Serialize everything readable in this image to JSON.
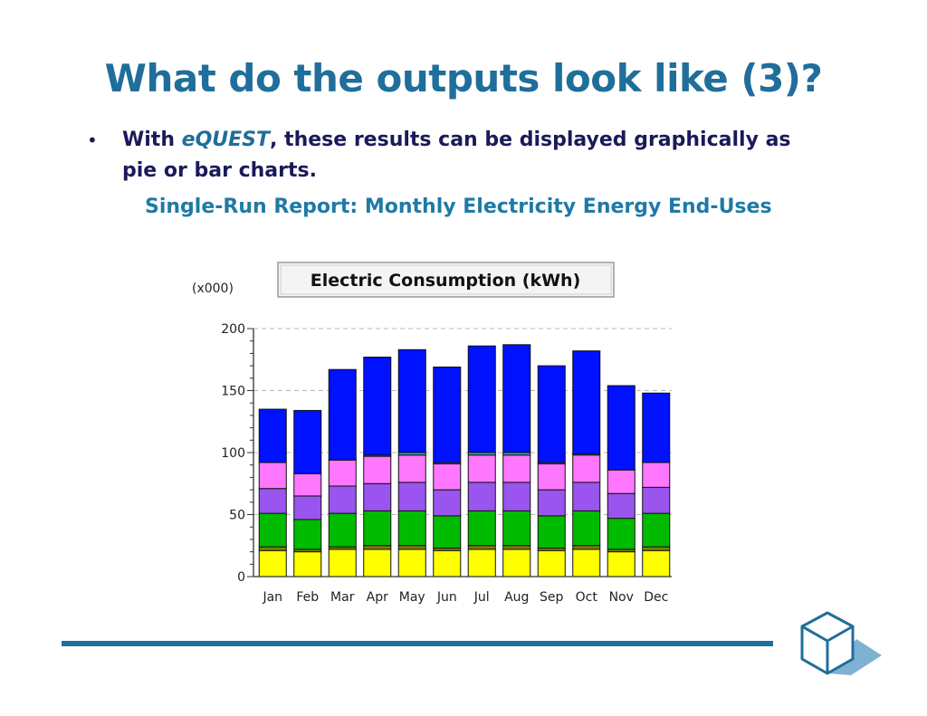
{
  "slide": {
    "title": "What do the outputs look like (3)?",
    "bullet": {
      "prefix": "With ",
      "emphasis": "eQUEST",
      "suffix": ", these results can be displayed graphically as pie or bar charts."
    },
    "subtitle": "Single-Run Report: Monthly Electricity Energy End-Uses"
  },
  "chart_data": {
    "type": "bar",
    "stacked": true,
    "title": "Electric Consumption (kWh)",
    "unit_label": "(x000)",
    "xlabel": "",
    "ylabel": "",
    "ylim": [
      0,
      200
    ],
    "yticks": [
      0,
      50,
      100,
      150,
      200
    ],
    "categories": [
      "Jan",
      "Feb",
      "Mar",
      "Apr",
      "May",
      "Jun",
      "Jul",
      "Aug",
      "Sep",
      "Oct",
      "Nov",
      "Dec"
    ],
    "series": [
      {
        "name": "yellow",
        "color": "#ffff00",
        "values": [
          21,
          20,
          22,
          22,
          22,
          21,
          22,
          22,
          21,
          22,
          20,
          21
        ]
      },
      {
        "name": "olive",
        "color": "#808000",
        "values": [
          3,
          2,
          2,
          3,
          3,
          2,
          3,
          3,
          2,
          3,
          2,
          3
        ]
      },
      {
        "name": "green",
        "color": "#00bb00",
        "values": [
          27,
          24,
          27,
          28,
          28,
          26,
          28,
          28,
          26,
          28,
          25,
          27
        ]
      },
      {
        "name": "purple",
        "color": "#9955ee",
        "values": [
          20,
          19,
          22,
          22,
          23,
          21,
          23,
          23,
          21,
          23,
          20,
          21
        ]
      },
      {
        "name": "magenta",
        "color": "#ff77ff",
        "values": [
          21,
          18,
          21,
          22,
          22,
          21,
          22,
          22,
          21,
          22,
          19,
          20
        ]
      },
      {
        "name": "teal",
        "color": "#33aaaa",
        "values": [
          0,
          0,
          0,
          1,
          2,
          1,
          2,
          2,
          1,
          1,
          0,
          0
        ]
      },
      {
        "name": "blue",
        "color": "#0011ff",
        "values": [
          43,
          51,
          73,
          79,
          83,
          77,
          86,
          87,
          78,
          83,
          68,
          56
        ]
      }
    ]
  },
  "colors": {
    "title": "#1f6e9b",
    "bullet_text": "#1a1a5a",
    "subtitle": "#1f7aa5",
    "rule": "#1f6e9b"
  }
}
